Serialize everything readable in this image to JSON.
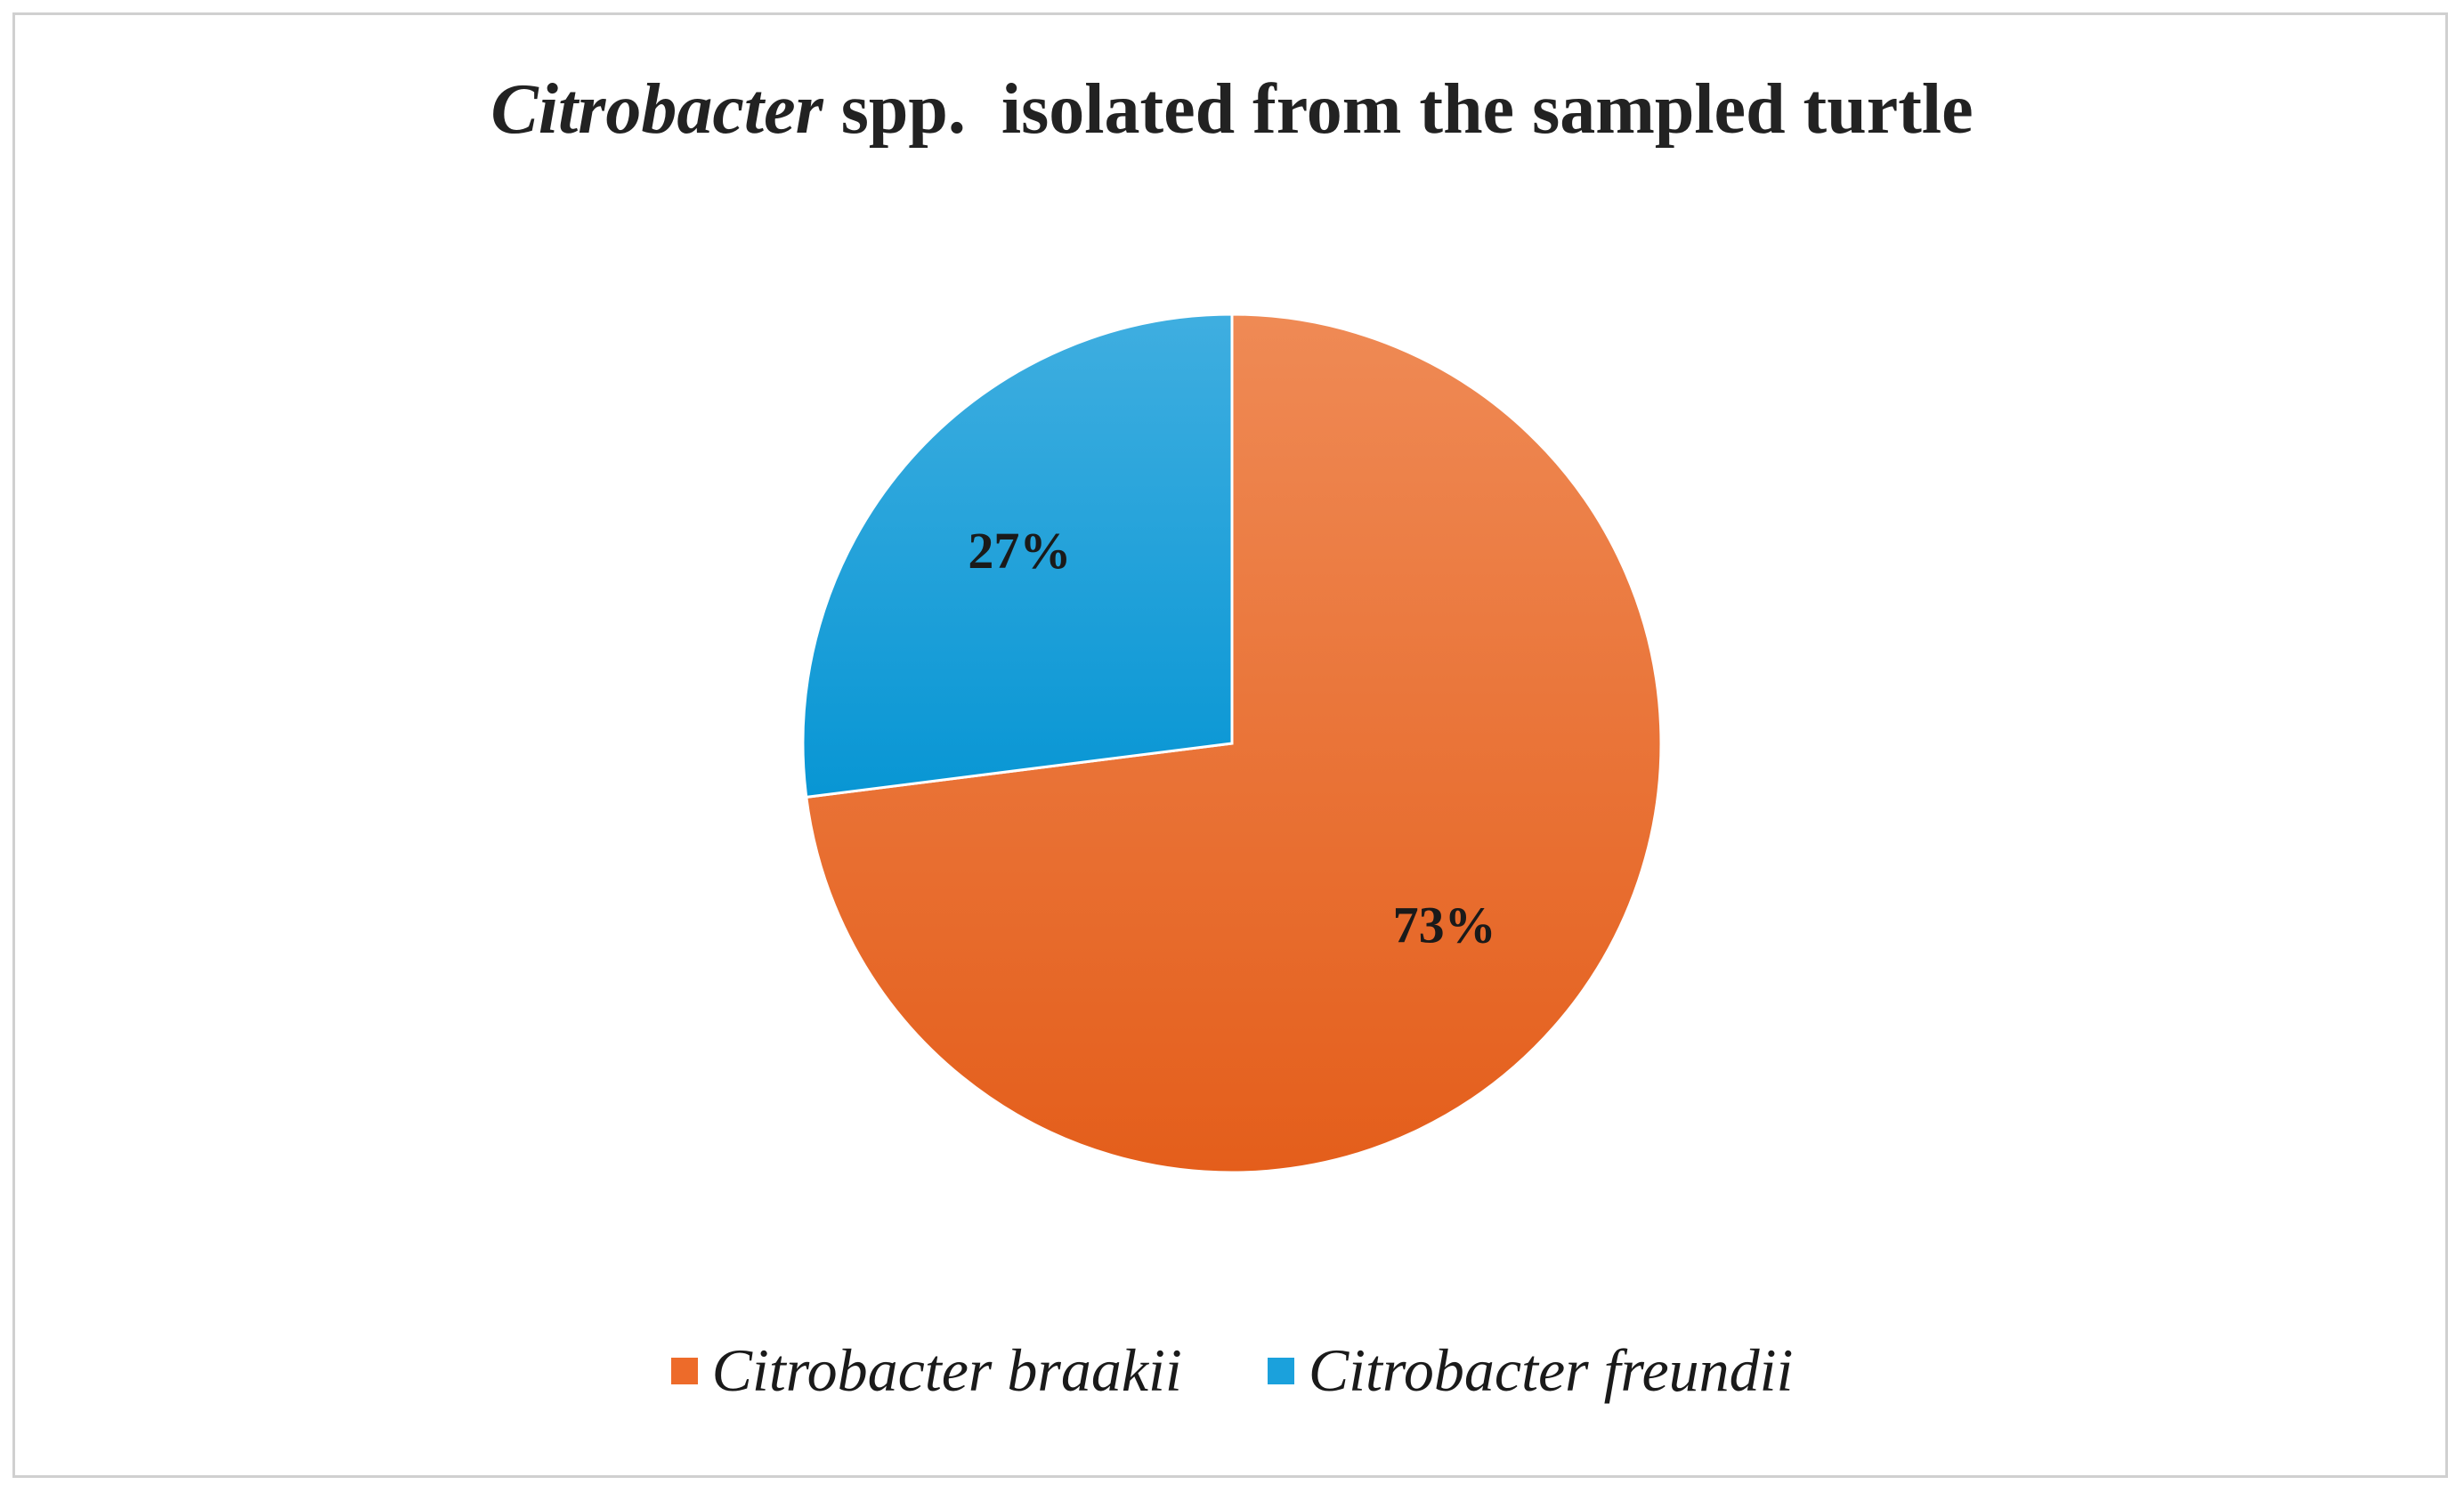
{
  "chart_data": {
    "type": "pie",
    "title_genus": "Citrobacter",
    "title_rest": " spp.  isolated from the sampled turtle",
    "categories": [
      "Citrobacter braakii",
      "Citrobacter freundii"
    ],
    "values": [
      73,
      27
    ],
    "labels": [
      "73%",
      "27%"
    ],
    "colors": [
      "#ED6B2A",
      "#1BA1DC"
    ],
    "legend_position": "bottom"
  }
}
